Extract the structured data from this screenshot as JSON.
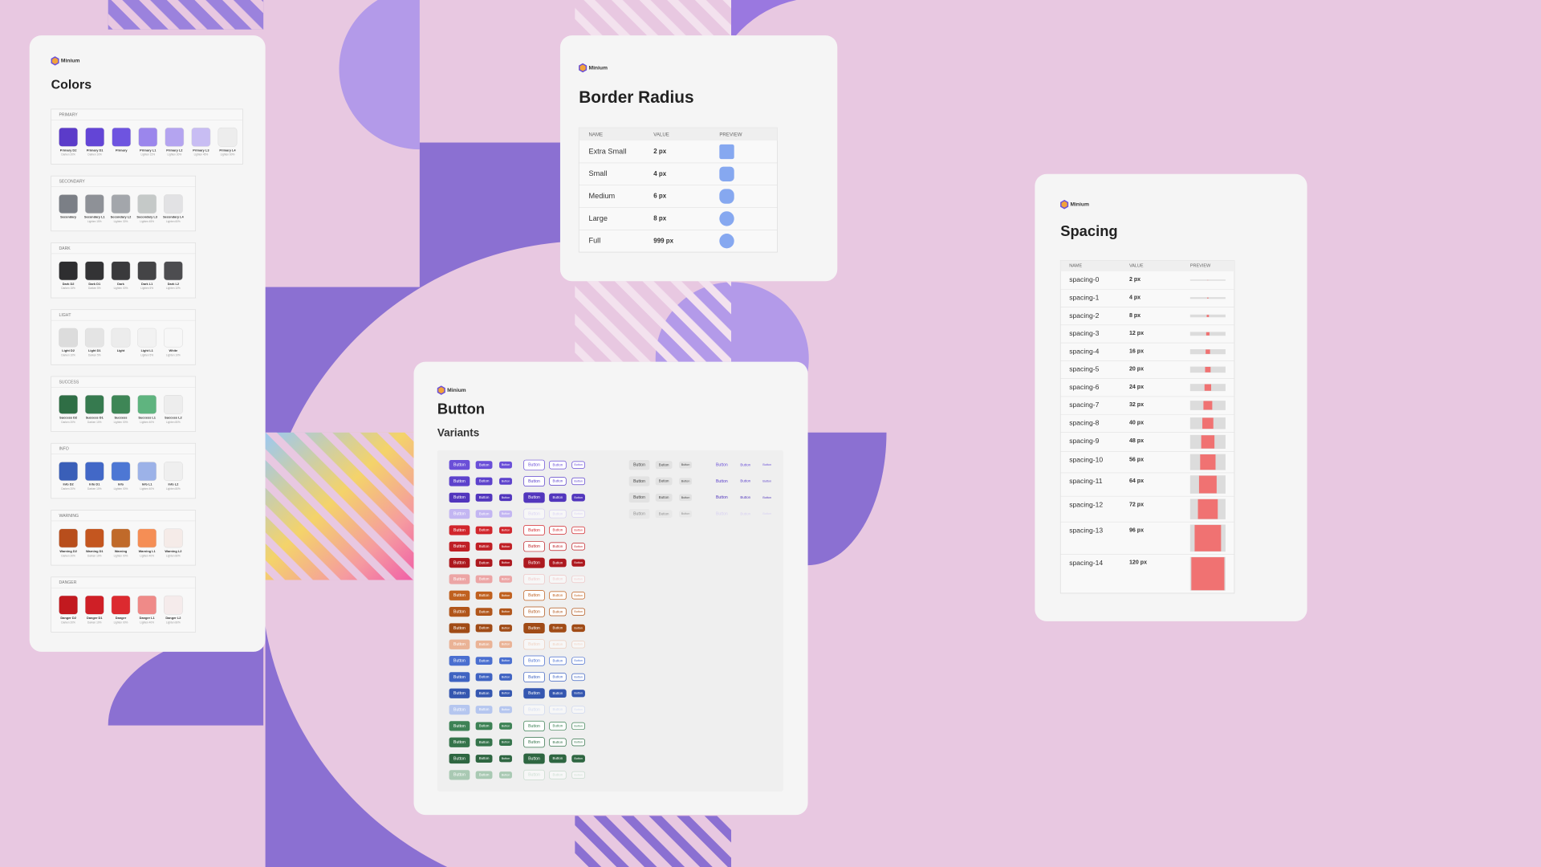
{
  "colors_card": {
    "brand": "Minium",
    "title": "Colors",
    "groups": [
      {
        "label": "PRIMARY",
        "swatches": [
          {
            "name": "Primary D2",
            "note": "Darken 20%",
            "color": "#5b3bc9"
          },
          {
            "name": "Primary D1",
            "note": "Darken 10%",
            "color": "#6345d6"
          },
          {
            "name": "Primary",
            "color": "#6e54e0"
          },
          {
            "name": "Primary L1",
            "note": "Lighten 15%",
            "color": "#9b86ec"
          },
          {
            "name": "Primary L2",
            "note": "Lighten 30%",
            "color": "#b4a4f0"
          },
          {
            "name": "Primary L3",
            "note": "Lighten 45%",
            "color": "#c8bdf3"
          },
          {
            "name": "Primary L4",
            "note": "Lighten 60%",
            "color": "#ededed"
          }
        ]
      },
      {
        "label": "SECONDARY",
        "swatches": [
          {
            "name": "Secondary",
            "color": "#7b7f86"
          },
          {
            "name": "Secondary L1",
            "note": "Lighten 15%",
            "color": "#8e9197"
          },
          {
            "name": "Secondary L2",
            "note": "Lighten 30%",
            "color": "#a3a6ab"
          },
          {
            "name": "Secondary L3",
            "note": "Lighten 45%",
            "color": "#c5c9c8"
          },
          {
            "name": "Secondary L4",
            "note": "Lighten 60%",
            "color": "#e2e2e4"
          }
        ]
      },
      {
        "label": "DARK",
        "swatches": [
          {
            "name": "Dark D2",
            "note": "Darken 15%",
            "color": "#2e2e30"
          },
          {
            "name": "Dark D1",
            "note": "Darken 5%",
            "color": "#333335"
          },
          {
            "name": "Dark",
            "note": "Lighten 00%",
            "color": "#3a3a3c"
          },
          {
            "name": "Dark L1",
            "note": "Lighten 5%",
            "color": "#444446"
          },
          {
            "name": "Dark L2",
            "note": "Lighten 10%",
            "color": "#4d4d50"
          }
        ]
      },
      {
        "label": "LIGHT",
        "swatches": [
          {
            "name": "Light D2",
            "note": "Darken 10%",
            "color": "#dcdcdc"
          },
          {
            "name": "Light D1",
            "note": "Darken 5%",
            "color": "#e4e4e4"
          },
          {
            "name": "Light",
            "color": "#ececec"
          },
          {
            "name": "Light L1",
            "note": "Lighten 5%",
            "color": "#f2f2f2"
          },
          {
            "name": "White",
            "note": "Lighten 10%",
            "color": "#f7f7f7"
          }
        ]
      },
      {
        "label": "SUCCESS",
        "swatches": [
          {
            "name": "Success D2",
            "note": "Darken 20%",
            "color": "#2f6e45"
          },
          {
            "name": "Success D1",
            "note": "Darken 10%",
            "color": "#367a4f"
          },
          {
            "name": "Success",
            "note": "Lighten 00%",
            "color": "#3e8656"
          },
          {
            "name": "Success L1",
            "note": "Lighten 40%",
            "color": "#5fb47f"
          },
          {
            "name": "Success L2",
            "note": "Lighten 80%",
            "color": "#ededed"
          }
        ]
      },
      {
        "label": "INFO",
        "swatches": [
          {
            "name": "Info D2",
            "note": "Darken 20%",
            "color": "#3a5fb8"
          },
          {
            "name": "Info D1",
            "note": "Darken 10%",
            "color": "#4268c7"
          },
          {
            "name": "Info",
            "note": "Lighten 00%",
            "color": "#4d77d4"
          },
          {
            "name": "Info L1",
            "note": "Lighten 40%",
            "color": "#9cb2e8"
          },
          {
            "name": "Info L2",
            "note": "Lighten 80%",
            "color": "#efefef"
          }
        ]
      },
      {
        "label": "WARNING",
        "swatches": [
          {
            "name": "Warning D2",
            "note": "Darken 20%",
            "color": "#b84e1c"
          },
          {
            "name": "Warning D1",
            "note": "Darken 10%",
            "color": "#c4561f"
          },
          {
            "name": "Warning",
            "note": "Lighten 00%",
            "color": "#c06a2a"
          },
          {
            "name": "Warning L1",
            "note": "Lighten 40%",
            "color": "#f58e55"
          },
          {
            "name": "Warning L2",
            "note": "Lighten 80%",
            "color": "#f5ebe8"
          }
        ]
      },
      {
        "label": "DANGER",
        "swatches": [
          {
            "name": "Danger D2",
            "note": "Darken 20%",
            "color": "#c2191f"
          },
          {
            "name": "Danger D1",
            "note": "Darken 10%",
            "color": "#cf1f26"
          },
          {
            "name": "Danger",
            "note": "Lighten 00%",
            "color": "#dc2a2f"
          },
          {
            "name": "Danger L1",
            "note": "Lighten 40%",
            "color": "#ef8a88"
          },
          {
            "name": "Danger L2",
            "note": "Lighten 80%",
            "color": "#f5ebeb"
          }
        ]
      }
    ]
  },
  "radius_card": {
    "brand": "Minium",
    "title": "Border Radius",
    "headers": [
      "NAME",
      "VALUE",
      "PREVIEW"
    ],
    "rows": [
      [
        "Extra Small",
        "2 px"
      ],
      [
        "Small",
        "4 px"
      ],
      [
        "Medium",
        "6 px"
      ],
      [
        "Large",
        "8 px"
      ],
      [
        "Full",
        "999 px"
      ]
    ],
    "preview_color": "#86a8f0"
  },
  "button_card": {
    "brand": "Minium",
    "title": "Button",
    "subtitle": "Variants",
    "label": "Button",
    "groups": [
      {
        "colors": [
          "#6a4fd8",
          "#5d42cc",
          "#5236bd",
          "#c3b6f2"
        ],
        "extended": true
      },
      {
        "colors": [
          "#d1262c",
          "#c01f25",
          "#ad191f",
          "#eca5a5"
        ]
      },
      {
        "colors": [
          "#c0611f",
          "#b1561b",
          "#a04b16",
          "#eab396"
        ]
      },
      {
        "colors": [
          "#4a6fd0",
          "#3f63c2",
          "#3557b0",
          "#b5c6ef"
        ]
      },
      {
        "colors": [
          "#3d8255",
          "#35744b",
          "#2e6641",
          "#a9c9b3"
        ]
      }
    ]
  },
  "spacing_card": {
    "brand": "Minium",
    "title": "Spacing",
    "headers": [
      "NAME",
      "VALUE",
      "PREVIEW"
    ],
    "rows": [
      [
        "spacing-0",
        "2 px"
      ],
      [
        "spacing-1",
        "4 px"
      ],
      [
        "spacing-2",
        "8 px"
      ],
      [
        "spacing-3",
        "12 px"
      ],
      [
        "spacing-4",
        "16 px"
      ],
      [
        "spacing-5",
        "20 px"
      ],
      [
        "spacing-6",
        "24 px"
      ],
      [
        "spacing-7",
        "32 px"
      ],
      [
        "spacing-8",
        "40 px"
      ],
      [
        "spacing-9",
        "48 px"
      ],
      [
        "spacing-10",
        "56 px"
      ],
      [
        "spacing-11",
        "64 px"
      ],
      [
        "spacing-12",
        "72 px"
      ],
      [
        "spacing-13",
        "96 px"
      ],
      [
        "spacing-14",
        "120 px"
      ]
    ],
    "preview_color": "#f07272"
  }
}
